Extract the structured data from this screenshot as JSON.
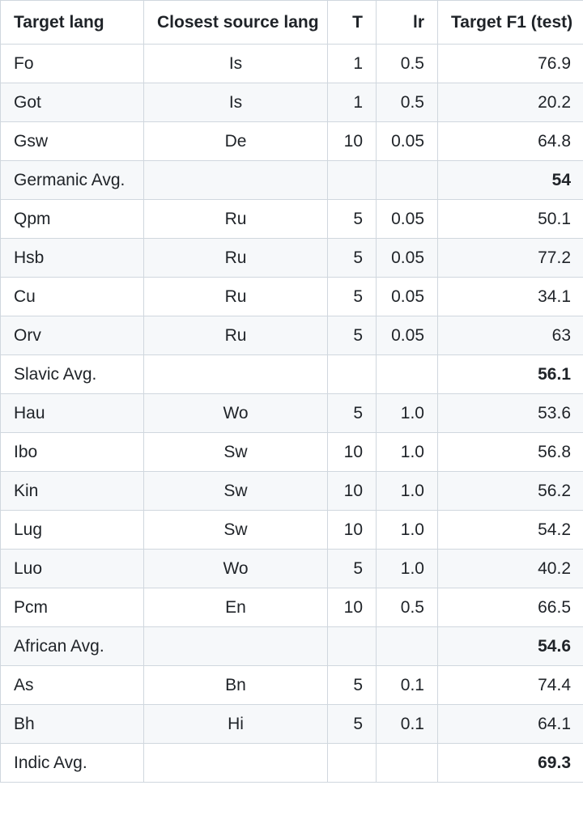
{
  "table": {
    "headers": [
      "Target lang",
      "Closest source lang",
      "T",
      "lr",
      "Target F1 (test)"
    ],
    "rows": [
      {
        "target": "Fo",
        "source": "Is",
        "t": "1",
        "lr": "0.5",
        "f1": "76.9",
        "avg": false
      },
      {
        "target": "Got",
        "source": "Is",
        "t": "1",
        "lr": "0.5",
        "f1": "20.2",
        "avg": false
      },
      {
        "target": "Gsw",
        "source": "De",
        "t": "10",
        "lr": "0.05",
        "f1": "64.8",
        "avg": false
      },
      {
        "target": "Germanic Avg.",
        "source": "",
        "t": "",
        "lr": "",
        "f1": "54",
        "avg": true
      },
      {
        "target": "Qpm",
        "source": "Ru",
        "t": "5",
        "lr": "0.05",
        "f1": "50.1",
        "avg": false
      },
      {
        "target": "Hsb",
        "source": "Ru",
        "t": "5",
        "lr": "0.05",
        "f1": "77.2",
        "avg": false
      },
      {
        "target": "Cu",
        "source": "Ru",
        "t": "5",
        "lr": "0.05",
        "f1": "34.1",
        "avg": false
      },
      {
        "target": "Orv",
        "source": "Ru",
        "t": "5",
        "lr": "0.05",
        "f1": "63",
        "avg": false
      },
      {
        "target": "Slavic Avg.",
        "source": "",
        "t": "",
        "lr": "",
        "f1": "56.1",
        "avg": true
      },
      {
        "target": "Hau",
        "source": "Wo",
        "t": "5",
        "lr": "1.0",
        "f1": "53.6",
        "avg": false
      },
      {
        "target": "Ibo",
        "source": "Sw",
        "t": "10",
        "lr": "1.0",
        "f1": "56.8",
        "avg": false
      },
      {
        "target": "Kin",
        "source": "Sw",
        "t": "10",
        "lr": "1.0",
        "f1": "56.2",
        "avg": false
      },
      {
        "target": "Lug",
        "source": "Sw",
        "t": "10",
        "lr": "1.0",
        "f1": "54.2",
        "avg": false
      },
      {
        "target": "Luo",
        "source": "Wo",
        "t": "5",
        "lr": "1.0",
        "f1": "40.2",
        "avg": false
      },
      {
        "target": "Pcm",
        "source": "En",
        "t": "10",
        "lr": "0.5",
        "f1": "66.5",
        "avg": false
      },
      {
        "target": "African Avg.",
        "source": "",
        "t": "",
        "lr": "",
        "f1": "54.6",
        "avg": true
      },
      {
        "target": "As",
        "source": "Bn",
        "t": "5",
        "lr": "0.1",
        "f1": "74.4",
        "avg": false
      },
      {
        "target": "Bh",
        "source": "Hi",
        "t": "5",
        "lr": "0.1",
        "f1": "64.1",
        "avg": false
      },
      {
        "target": "Indic Avg.",
        "source": "",
        "t": "",
        "lr": "",
        "f1": "69.3",
        "avg": true
      }
    ]
  }
}
